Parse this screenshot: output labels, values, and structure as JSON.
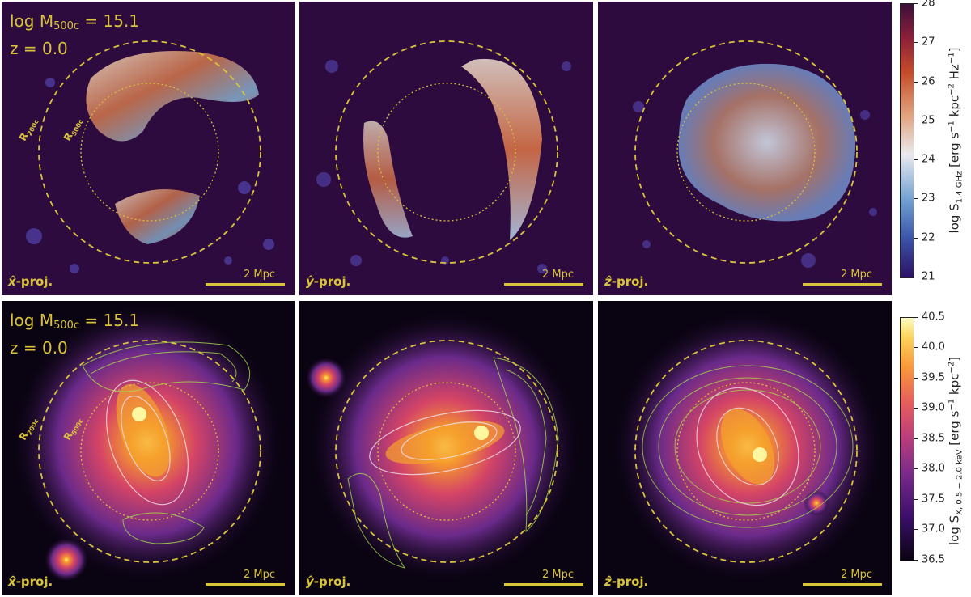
{
  "panels_top": [
    {
      "mass_label": "log M",
      "mass_sub": "500c",
      "mass_value": " = 15.1",
      "z_label": "z = 0.0",
      "proj_axis": "x̂",
      "proj_suffix": "-proj.",
      "scale_label": "2 Mpc",
      "r200_label": "R",
      "r200_sub": "200c",
      "r500_label": "R",
      "r500_sub": "500c"
    },
    {
      "proj_axis": "ŷ",
      "proj_suffix": "-proj.",
      "scale_label": "2 Mpc"
    },
    {
      "proj_axis": "ẑ",
      "proj_suffix": "-proj.",
      "scale_label": "2 Mpc"
    }
  ],
  "panels_bottom": [
    {
      "mass_label": "log M",
      "mass_sub": "500c",
      "mass_value": " = 15.1",
      "z_label": "z = 0.0",
      "proj_axis": "x̂",
      "proj_suffix": "-proj.",
      "scale_label": "2 Mpc",
      "r200_label": "R",
      "r200_sub": "200c",
      "r500_label": "R",
      "r500_sub": "500c"
    },
    {
      "proj_axis": "ŷ",
      "proj_suffix": "-proj.",
      "scale_label": "2 Mpc"
    },
    {
      "proj_axis": "ẑ",
      "proj_suffix": "-proj.",
      "scale_label": "2 Mpc"
    }
  ],
  "colorbar_top": {
    "label_main": "log S",
    "label_sub": "1.4 GHz",
    "label_units_a": " [erg s",
    "label_sup1": "−1",
    "label_units_b": " kpc",
    "label_sup2": "−2",
    "label_units_c": " Hz",
    "label_sup3": "−1",
    "label_end": "]",
    "ticks": [
      "21",
      "22",
      "23",
      "24",
      "25",
      "26",
      "27",
      "28"
    ],
    "range": [
      21,
      28
    ]
  },
  "colorbar_bottom": {
    "label_main": "log S",
    "label_sub": "X, 0.5 − 2.0 keV",
    "label_units_a": " [erg s",
    "label_sup1": "−1",
    "label_units_b": " kpc",
    "label_sup2": "−2",
    "label_end": "]",
    "ticks": [
      "36.5",
      "37.0",
      "37.5",
      "38.0",
      "38.5",
      "39.0",
      "39.5",
      "40.0",
      "40.5"
    ],
    "range": [
      36.5,
      40.5
    ]
  },
  "colors": {
    "annotation": "#d8c33a",
    "radio_bg": "#2e0b3f",
    "xray_bg": "#0a0312",
    "contour": "#a8e04a"
  }
}
